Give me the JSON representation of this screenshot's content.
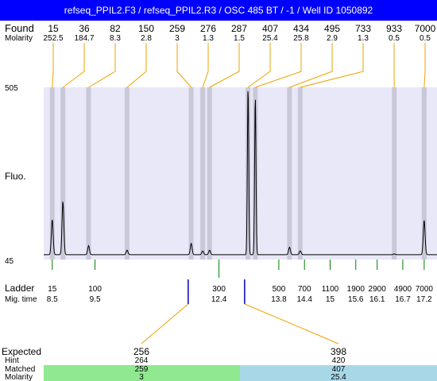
{
  "title": "refseq_PPIL2.F3 / refseq_PPIL2.R3 / OSC 485 BT  / -1  / Well ID 1050892",
  "labels": {
    "found": "Found",
    "molarity": "Molarity",
    "fluo": "Fluo.",
    "ladder": "Ladder",
    "mig_time": "Mig. time",
    "expected": "Expected",
    "hint": "Hint",
    "matched": "Matched",
    "molarity_bottom": "Molarity"
  },
  "colors": {
    "title_bg": "#0000ff",
    "plot_bg": "#e8e8f8",
    "band": "#c8c8d8",
    "found_line": "#f0a000",
    "ladder_tick": "#008000",
    "expected_tick": "#0000c0",
    "matched_left": "#90e890",
    "matched_right": "#a8d8e8"
  },
  "chart_data": {
    "type": "line",
    "ylabel": "Fluo.",
    "y_ticks": [
      "505",
      "45"
    ],
    "ylim": [
      45,
      505
    ],
    "found_peaks": [
      {
        "size": "15",
        "molarity": "252.5",
        "mig_time": 8.5,
        "height": 152
      },
      {
        "size": "36",
        "molarity": "184.7",
        "mig_time": 8.75,
        "height": 200
      },
      {
        "size": "82",
        "molarity": "8.3",
        "mig_time": 9.35,
        "height": 82
      },
      {
        "size": "150",
        "molarity": "2.8",
        "mig_time": 10.25,
        "height": 70
      },
      {
        "size": "259",
        "molarity": "3",
        "mig_time": 11.75,
        "height": 88
      },
      {
        "size": "276",
        "molarity": "1.3",
        "mig_time": 12.02,
        "height": 68
      },
      {
        "size": "287",
        "molarity": "1.5",
        "mig_time": 12.18,
        "height": 70
      },
      {
        "size": "407",
        "molarity": "25.4",
        "mig_time": 13.08,
        "height": 505
      },
      {
        "size": "434",
        "molarity": "25.8",
        "mig_time": 13.25,
        "height": 480
      },
      {
        "size": "495",
        "molarity": "2.9",
        "mig_time": 14.05,
        "height": 78
      },
      {
        "size": "733",
        "molarity": "1.3",
        "mig_time": 14.3,
        "height": 68
      },
      {
        "size": "933",
        "molarity": "0.5",
        "mig_time": 16.5,
        "height": 60
      },
      {
        "size": "7000",
        "molarity": "0.5",
        "mig_time": 17.2,
        "height": 150
      }
    ],
    "ladder": [
      {
        "size": "15",
        "mig_time": "8.5",
        "row": 0
      },
      {
        "size": "100",
        "mig_time": "9.5",
        "row": 0
      },
      {
        "size": "300",
        "mig_time": "12.4",
        "row": 1
      },
      {
        "size": "500",
        "mig_time": "13.8",
        "row": 0
      },
      {
        "size": "700",
        "mig_time": "14.4",
        "row": 0
      },
      {
        "size": "1100",
        "mig_time": "15",
        "row": 0
      },
      {
        "size": "1900",
        "mig_time": "15.6",
        "row": 0
      },
      {
        "size": "2900",
        "mig_time": "16.1",
        "row": 0
      },
      {
        "size": "4900",
        "mig_time": "16.7",
        "row": 0
      },
      {
        "size": "7000",
        "mig_time": "17.2",
        "row": 0
      }
    ],
    "expected": [
      {
        "size": "256",
        "hint": "264",
        "matched": "259",
        "molarity": "3",
        "mig_time": 11.68
      },
      {
        "size": "398",
        "hint": "420",
        "matched": "407",
        "molarity": "25.4",
        "mig_time": 13.0
      }
    ]
  }
}
